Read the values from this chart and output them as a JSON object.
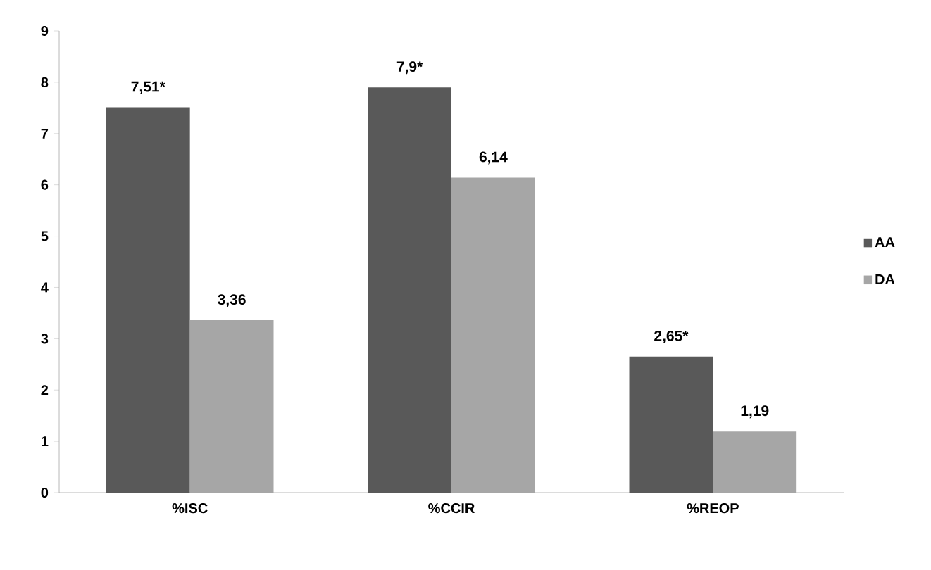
{
  "chart_data": {
    "type": "bar",
    "categories": [
      "%ISC",
      "%CCIR",
      "%REOP"
    ],
    "series": [
      {
        "name": "AA",
        "color": "#595959",
        "values": [
          7.51,
          7.9,
          2.65
        ],
        "value_labels": [
          "7,51*",
          "7,9*",
          "2,65*"
        ]
      },
      {
        "name": "DA",
        "color": "#a6a6a6",
        "values": [
          3.36,
          6.14,
          1.19
        ],
        "value_labels": [
          "3,36",
          "6,14",
          "1,19"
        ]
      }
    ],
    "ylim": [
      0,
      9
    ],
    "yticks": [
      0,
      1,
      2,
      3,
      4,
      5,
      6,
      7,
      8,
      9
    ],
    "grid": false,
    "legend": "right"
  }
}
